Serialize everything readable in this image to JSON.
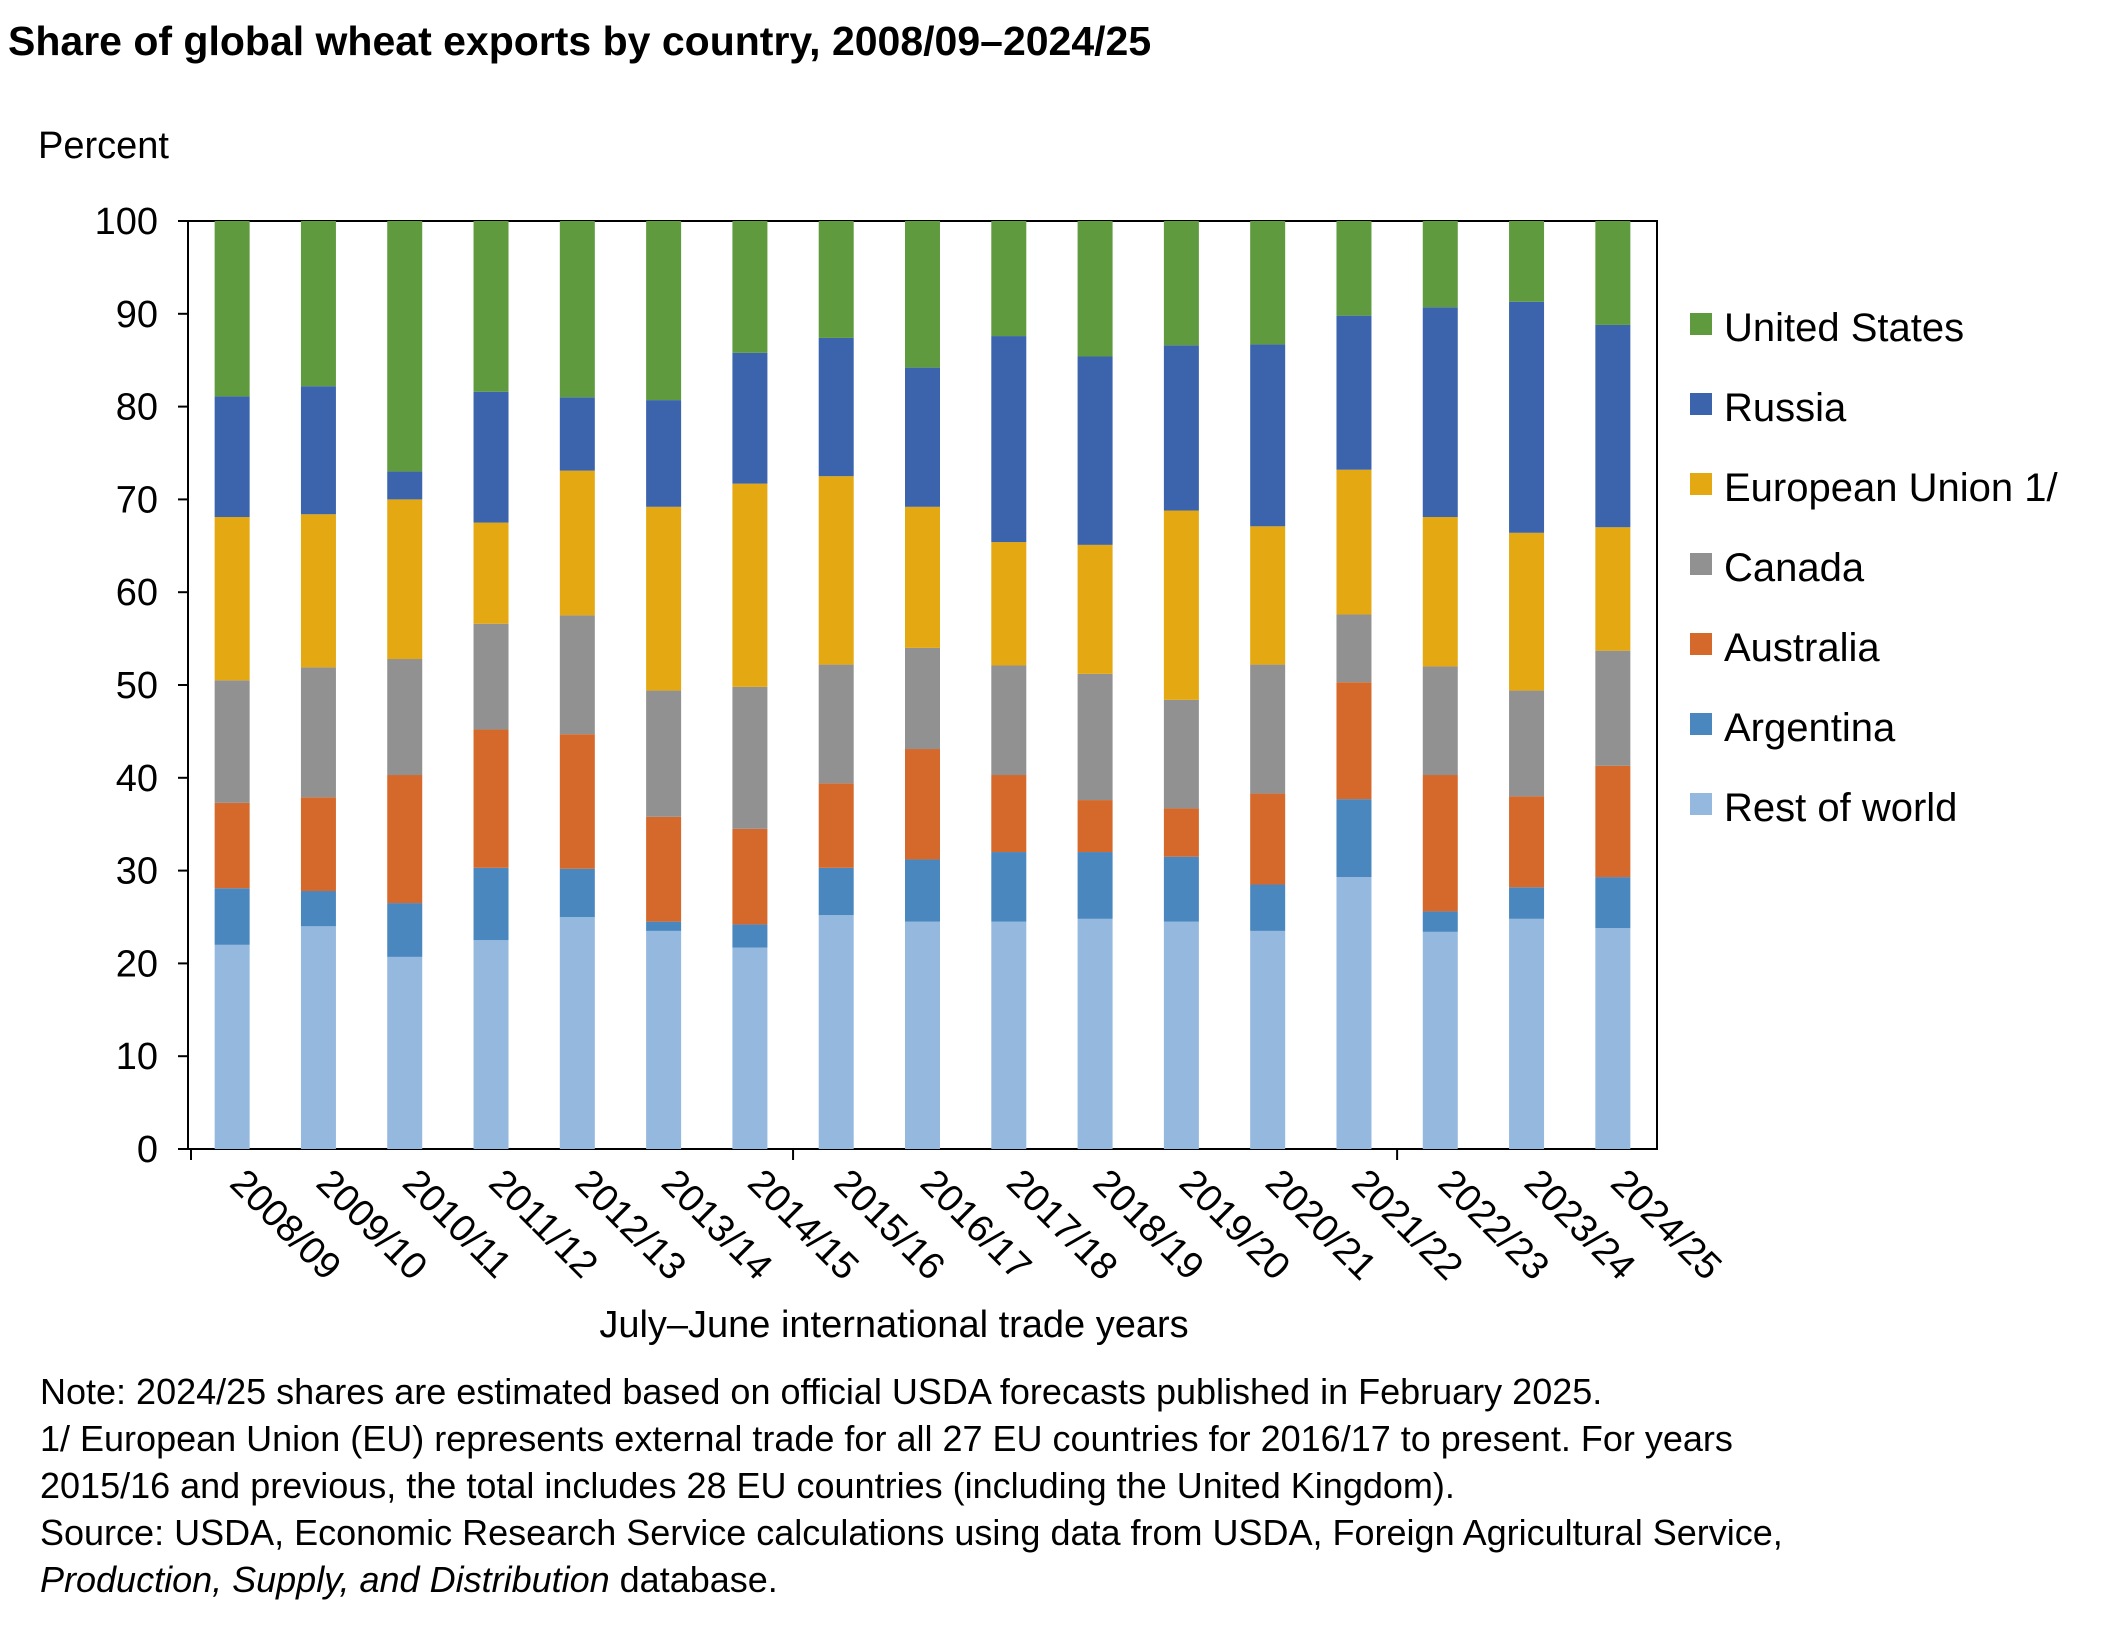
{
  "chart_data": {
    "type": "bar",
    "stacked": true,
    "title": "Share of global wheat exports by country, 2008/09–2024/25",
    "ylabel": "Percent",
    "xlabel": "July–June international trade years",
    "ylim": [
      0,
      100
    ],
    "yticks": [
      0,
      10,
      20,
      30,
      40,
      50,
      60,
      70,
      80,
      90,
      100
    ],
    "grid": false,
    "legend_position": "right",
    "categories": [
      "2008/09",
      "2009/10",
      "2010/11",
      "2011/12",
      "2012/13",
      "2013/14",
      "2014/15",
      "2015/16",
      "2016/17",
      "2017/18",
      "2018/19",
      "2019/20",
      "2020/21",
      "2021/22",
      "2022/23",
      "2023/24",
      "2024/25"
    ],
    "series": [
      {
        "name": "Rest of world",
        "color": "#95b8de",
        "values": [
          22.0,
          24.0,
          20.7,
          22.5,
          25.0,
          23.5,
          21.7,
          25.2,
          24.5,
          24.5,
          24.8,
          24.5,
          23.5,
          29.3,
          23.4,
          24.8,
          23.8
        ]
      },
      {
        "name": "Argentina",
        "color": "#4a87bf",
        "values": [
          6.1,
          3.8,
          5.8,
          7.8,
          5.2,
          1.0,
          2.5,
          5.1,
          6.7,
          7.5,
          7.2,
          7.0,
          5.0,
          8.4,
          2.2,
          3.4,
          5.5
        ]
      },
      {
        "name": "Australia",
        "color": "#d4692b",
        "values": [
          9.2,
          10.1,
          13.8,
          14.9,
          14.5,
          11.3,
          10.3,
          9.1,
          11.9,
          8.3,
          5.6,
          5.2,
          9.8,
          12.6,
          14.7,
          9.8,
          12.0
        ]
      },
      {
        "name": "Canada",
        "color": "#919191",
        "values": [
          13.2,
          14.0,
          12.5,
          11.4,
          12.8,
          13.6,
          15.3,
          12.8,
          10.9,
          11.8,
          13.6,
          11.7,
          13.9,
          7.3,
          11.7,
          11.4,
          12.4
        ]
      },
      {
        "name": "European Union 1/",
        "color": "#e4a812",
        "values": [
          17.6,
          16.5,
          17.2,
          10.9,
          15.6,
          19.8,
          21.9,
          20.3,
          15.2,
          13.3,
          13.9,
          20.4,
          14.9,
          15.6,
          16.1,
          17.0,
          13.3
        ]
      },
      {
        "name": "Russia",
        "color": "#3b64ad",
        "values": [
          13.0,
          13.8,
          3.0,
          14.1,
          7.9,
          11.5,
          14.1,
          14.9,
          15.0,
          22.2,
          20.3,
          17.8,
          19.6,
          16.6,
          22.6,
          24.9,
          21.8
        ]
      },
      {
        "name": "United States",
        "color": "#5f9a3e",
        "values": [
          18.9,
          17.8,
          27.0,
          18.4,
          19.0,
          19.3,
          14.2,
          12.6,
          15.8,
          12.4,
          14.6,
          13.4,
          13.3,
          10.2,
          9.3,
          8.7,
          11.2
        ]
      }
    ]
  },
  "notes": {
    "line1": "Note: 2024/25 shares are estimated based on official USDA forecasts published in February 2025.",
    "line2": "1/ European Union (EU) represents external trade for all 27 EU countries for 2016/17 to present. For years",
    "line3": "2015/16 and previous, the total includes 28 EU countries (including the United Kingdom).",
    "line4": "Source: USDA, Economic Research Service calculations using data from USDA, Foreign Agricultural Service,",
    "line5_italic": "Production, Supply, and Distribution",
    "line5_rest": " database."
  }
}
